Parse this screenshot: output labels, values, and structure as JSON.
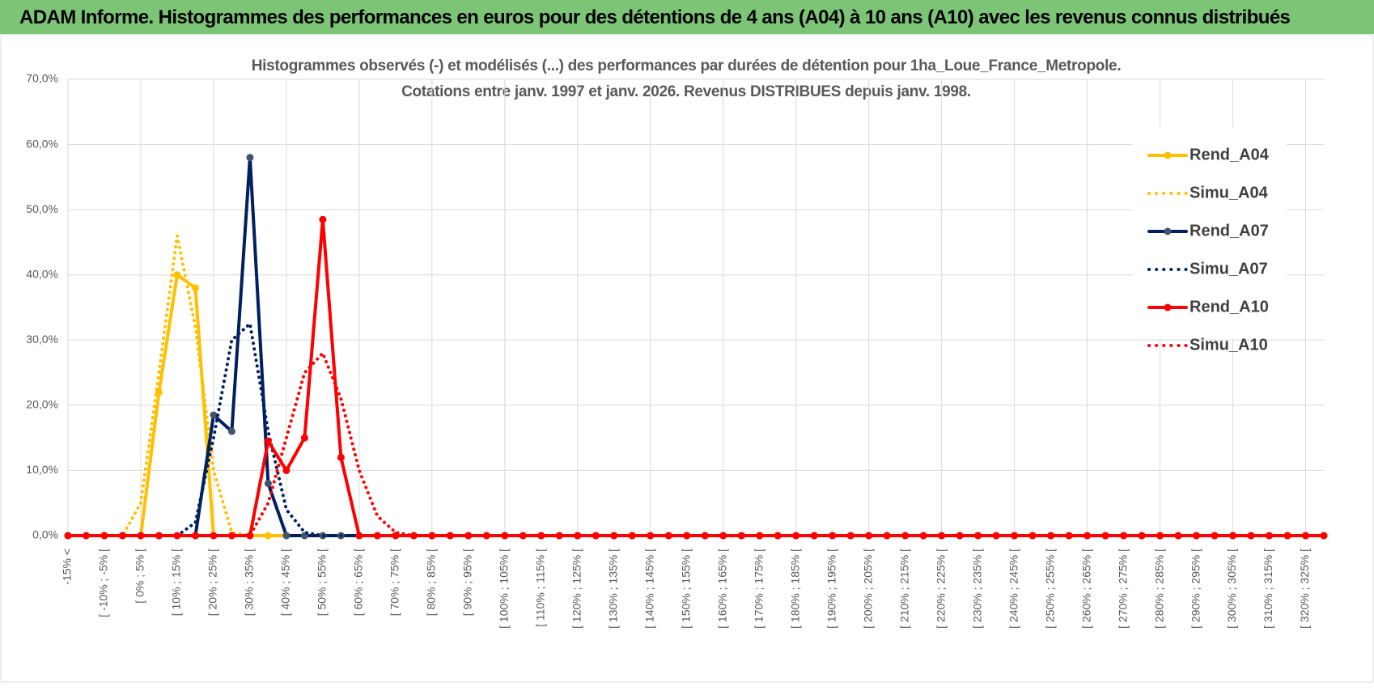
{
  "header": "ADAM Informe. Histogrammes des performances en euros pour des détentions de 4 ans (A04) à 10 ans (A10) avec les revenus connus distribués",
  "chart_data": {
    "type": "line",
    "title": "Histogrammes observés (-) et modélisés (...) des performances par durées de détention pour 1ha_Loue_France_Metropole.",
    "subtitle": "Cotations entre janv. 1997 et janv. 2026. Revenus DISTRIBUES depuis janv. 1998.",
    "categories": [
      "-15% <",
      null,
      "[ -10% ; -5% [",
      null,
      "[ 0% ; 5% [",
      null,
      "[ 10% ; 15% [",
      null,
      "[ 20% ; 25% [",
      null,
      "[ 30% ; 35% [",
      null,
      "[ 40% ; 45% [",
      null,
      "[ 50% ; 55% [",
      null,
      "[ 60% ; 65% [",
      null,
      "[ 70% ; 75% [",
      null,
      "[ 80% ; 85% [",
      null,
      "[ 90% ; 95% [",
      null,
      "[ 100% ; 105% [",
      null,
      "[ 110% ; 115% [",
      null,
      "[ 120% ; 125% [",
      null,
      "[ 130% ; 135% [",
      null,
      "[ 140% ; 145% [",
      null,
      "[ 150% ; 155% [",
      null,
      "[ 160% ; 165% [",
      null,
      "[ 170% ; 175% [",
      null,
      "[ 180% ; 185% [",
      null,
      "[ 190% ; 195% [",
      null,
      "[ 200% ; 205% [",
      null,
      "[ 210% ; 215% [",
      null,
      "[ 220% ; 225% [",
      null,
      "[ 230% ; 235% [",
      null,
      "[ 240% ; 245% [",
      null,
      "[ 250% ; 255% [",
      null,
      "[ 260% ; 265% [",
      null,
      "[ 270% ; 275% [",
      null,
      "[ 280% ; 285% [",
      null,
      "[ 290% ; 295% [",
      null,
      "[ 300% ; 305% [",
      null,
      "[ 310% ; 315% [",
      null,
      "[ 320% ; 325% [",
      null
    ],
    "series": [
      {
        "name": "Rend_A04",
        "color": "#ffc000",
        "dash": "solid",
        "markers": true,
        "values": [
          0,
          0,
          0,
          0,
          0,
          22,
          40,
          38,
          0,
          0,
          0,
          0,
          0,
          0,
          0,
          0,
          0,
          0,
          0,
          0,
          0,
          0,
          0,
          0,
          0,
          0,
          0,
          0,
          0,
          0,
          0,
          0,
          0,
          0,
          0,
          0,
          0,
          0,
          0,
          0,
          0,
          0,
          0,
          0,
          0,
          0,
          0,
          0,
          0,
          0,
          0,
          0,
          0,
          0,
          0,
          0,
          0,
          0,
          0,
          0,
          0,
          0,
          0,
          0,
          0,
          0,
          0,
          0,
          0,
          0
        ]
      },
      {
        "name": "Simu_A04",
        "color": "#ffc000",
        "dash": "dotted",
        "markers": false,
        "values": [
          0,
          0,
          0,
          0,
          5,
          25,
          46,
          32,
          10,
          0.5,
          0,
          0,
          0,
          0,
          0,
          0,
          0,
          0,
          0,
          0,
          0,
          0,
          0,
          0,
          0,
          0,
          0,
          0,
          0,
          0,
          0,
          0,
          0,
          0,
          0,
          0,
          0,
          0,
          0,
          0,
          0,
          0,
          0,
          0,
          0,
          0,
          0,
          0,
          0,
          0,
          0,
          0,
          0,
          0,
          0,
          0,
          0,
          0,
          0,
          0,
          0,
          0,
          0,
          0,
          0,
          0,
          0,
          0,
          0,
          0
        ]
      },
      {
        "name": "Rend_A07",
        "color": "#002060",
        "dash": "solid",
        "markers": true,
        "values": [
          0,
          0,
          0,
          0,
          0,
          0,
          0,
          0,
          18.5,
          16,
          58,
          8,
          0,
          0,
          0,
          0,
          0,
          0,
          0,
          0,
          0,
          0,
          0,
          0,
          0,
          0,
          0,
          0,
          0,
          0,
          0,
          0,
          0,
          0,
          0,
          0,
          0,
          0,
          0,
          0,
          0,
          0,
          0,
          0,
          0,
          0,
          0,
          0,
          0,
          0,
          0,
          0,
          0,
          0,
          0,
          0,
          0,
          0,
          0,
          0,
          0,
          0,
          0,
          0,
          0,
          0,
          0,
          0,
          0,
          0
        ]
      },
      {
        "name": "Simu_A07",
        "color": "#002060",
        "dash": "dotted",
        "markers": false,
        "values": [
          0,
          0,
          0,
          0,
          0,
          0,
          0,
          2,
          15,
          30,
          32.5,
          16,
          4,
          0.5,
          0,
          0,
          0,
          0,
          0,
          0,
          0,
          0,
          0,
          0,
          0,
          0,
          0,
          0,
          0,
          0,
          0,
          0,
          0,
          0,
          0,
          0,
          0,
          0,
          0,
          0,
          0,
          0,
          0,
          0,
          0,
          0,
          0,
          0,
          0,
          0,
          0,
          0,
          0,
          0,
          0,
          0,
          0,
          0,
          0,
          0,
          0,
          0,
          0,
          0,
          0,
          0,
          0,
          0,
          0,
          0
        ]
      },
      {
        "name": "Rend_A10",
        "color": "#ff0000",
        "dash": "solid",
        "markers": true,
        "values": [
          0,
          0,
          0,
          0,
          0,
          0,
          0,
          0,
          0,
          0,
          0,
          14.5,
          10,
          15,
          48.5,
          12,
          0,
          0,
          0,
          0,
          0,
          0,
          0,
          0,
          0,
          0,
          0,
          0,
          0,
          0,
          0,
          0,
          0,
          0,
          0,
          0,
          0,
          0,
          0,
          0,
          0,
          0,
          0,
          0,
          0,
          0,
          0,
          0,
          0,
          0,
          0,
          0,
          0,
          0,
          0,
          0,
          0,
          0,
          0,
          0,
          0,
          0,
          0,
          0,
          0,
          0,
          0,
          0,
          0,
          0
        ]
      },
      {
        "name": "Simu_A10",
        "color": "#ff0000",
        "dash": "dotted",
        "markers": false,
        "values": [
          0,
          0,
          0,
          0,
          0,
          0,
          0,
          0,
          0,
          0,
          0,
          5,
          15,
          25,
          28,
          21,
          10,
          3,
          0.5,
          0,
          0,
          0,
          0,
          0,
          0,
          0,
          0,
          0,
          0,
          0,
          0,
          0,
          0,
          0,
          0,
          0,
          0,
          0,
          0,
          0,
          0,
          0,
          0,
          0,
          0,
          0,
          0,
          0,
          0,
          0,
          0,
          0,
          0,
          0,
          0,
          0,
          0,
          0,
          0,
          0,
          0,
          0,
          0,
          0,
          0,
          0,
          0,
          0,
          0,
          0
        ]
      }
    ],
    "ylim": [
      0,
      70
    ],
    "yticks": [
      {
        "value": 0,
        "label": "0,0%"
      },
      {
        "value": 10,
        "label": "10,0%"
      },
      {
        "value": 20,
        "label": "20,0%"
      },
      {
        "value": 30,
        "label": "30,0%"
      },
      {
        "value": 40,
        "label": "40,0%"
      },
      {
        "value": 50,
        "label": "50,0%"
      },
      {
        "value": 60,
        "label": "60,0%"
      },
      {
        "value": 70,
        "label": "70,0%"
      }
    ],
    "grid": true,
    "legend": "right"
  }
}
